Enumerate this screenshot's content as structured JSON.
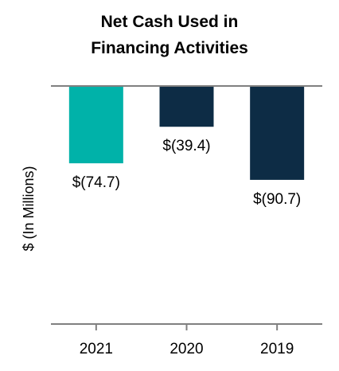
{
  "chart_data": {
    "type": "bar",
    "title_lines": [
      "Net Cash Used in",
      "Financing Activities"
    ],
    "ylabel": "$ (In Millions)",
    "xlabel": "",
    "categories": [
      "2021",
      "2020",
      "2019"
    ],
    "values": [
      -74.7,
      -39.4,
      -90.7
    ],
    "value_labels": [
      "$(74.7)",
      "$(39.4)",
      "$(90.7)"
    ],
    "bar_colors": [
      "#00b2a9",
      "#0d2c45",
      "#0d2c45"
    ],
    "ylim": [
      -230,
      0
    ],
    "grid": false,
    "legend": "none"
  },
  "colors": {
    "axis": "#808080",
    "text": "#000000"
  }
}
